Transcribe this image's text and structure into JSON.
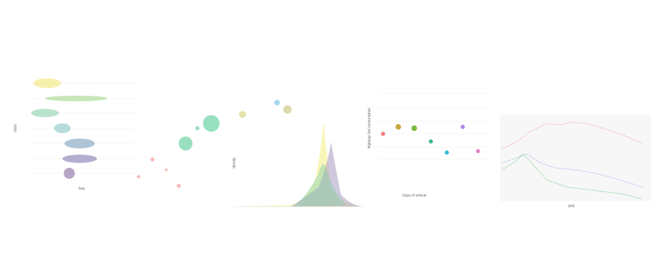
{
  "panels": [
    {
      "x_label": "hwy",
      "y_label": "class"
    },
    {
      "y_label": "density"
    },
    {
      "x_label": "Class of vehicle",
      "y_label": "Highway fuel consumption"
    },
    {
      "x_label": "year"
    }
  ]
}
